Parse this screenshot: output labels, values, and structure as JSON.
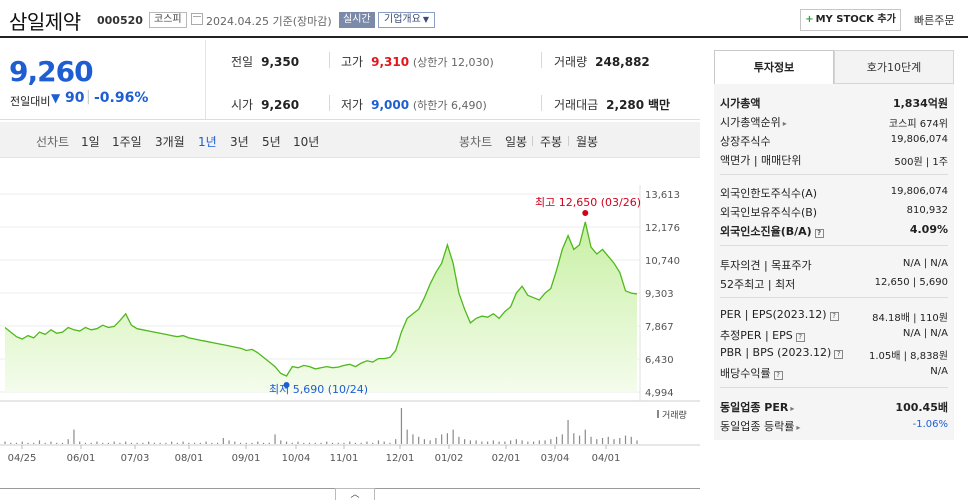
{
  "header": {
    "company_name": "삼일제약",
    "code": "000520",
    "market": "코스피",
    "date": "2024.04.25 기준(장마감)",
    "realtime": "실시간",
    "company_info": "기업개요",
    "mystock_label": "MY STOCK 추가",
    "quick_order": "빠른주문"
  },
  "quote": {
    "price": "9,260",
    "change_label": "전일대비",
    "change_value": "90",
    "change_pct": "-0.96%",
    "prev_label": "전일",
    "prev": "9,350",
    "high_label": "고가",
    "high": "9,310",
    "upper_limit": "(상한가 12,030)",
    "volume_label": "거래량",
    "volume": "248,882",
    "open_label": "시가",
    "open": "9,260",
    "low_label": "저가",
    "low": "9,000",
    "lower_limit": "(하한가 6,490)",
    "amount_label": "거래대금",
    "amount": "2,280",
    "amount_unit": "백만"
  },
  "chart_tabs": {
    "line_label": "선차트",
    "line_periods": [
      "1일",
      "1주일",
      "3개월",
      "1년",
      "3년",
      "5년",
      "10년"
    ],
    "active_period": "1년",
    "candle_label": "봉차트",
    "candle_periods": [
      "일봉",
      "주봉",
      "월봉"
    ]
  },
  "chart_data": {
    "type": "area",
    "y_ticks": [
      "13,613",
      "12,176",
      "10,740",
      "9,303",
      "7,867",
      "6,430",
      "4,994"
    ],
    "ylim": [
      4994,
      13613
    ],
    "x_ticks": [
      "04/25",
      "06/01",
      "07/03",
      "08/01",
      "09/01",
      "10/04",
      "11/01",
      "12/01",
      "01/02",
      "02/01",
      "03/04",
      "04/01"
    ],
    "high_annotation": "최고 12,650 (03/26)",
    "low_annotation": "최저 5,690 (10/24)",
    "volume_label": "거래량",
    "series_price": [
      7800,
      7600,
      7400,
      7300,
      7450,
      7350,
      7600,
      7500,
      7700,
      7550,
      7600,
      7800,
      7700,
      7650,
      7800,
      7700,
      7750,
      7900,
      7800,
      7850,
      8100,
      8400,
      7900,
      7750,
      7700,
      7650,
      7600,
      7550,
      7500,
      7450,
      7400,
      7450,
      7350,
      7300,
      7250,
      7200,
      7150,
      7100,
      7050,
      7000,
      6950,
      6900,
      6800,
      6850,
      6700,
      6500,
      6300,
      6100,
      5800,
      5690,
      6100,
      6050,
      6150,
      6100,
      6000,
      6050,
      6100,
      6050,
      6080,
      6150,
      6200,
      6100,
      6250,
      6350,
      6300,
      6450,
      6450,
      6500,
      6800,
      7600,
      8200,
      8400,
      8600,
      9100,
      9700,
      10200,
      10600,
      11400,
      10600,
      9300,
      8600,
      8000,
      8200,
      8300,
      8250,
      8400,
      8200,
      8500,
      8700,
      9300,
      9600,
      9200,
      9100,
      9000,
      9300,
      9500,
      10300,
      11200,
      11800,
      11200,
      11400,
      12400,
      11300,
      11000,
      11200,
      10900,
      10600,
      10200,
      9400,
      9300,
      9260
    ],
    "volume": [
      2,
      1,
      1,
      2,
      1,
      1,
      3,
      1,
      2,
      1,
      1,
      4,
      12,
      2,
      1,
      1,
      2,
      1,
      1,
      2,
      1,
      2,
      1,
      1,
      1,
      2,
      1,
      1,
      1,
      2,
      1,
      2,
      1,
      1,
      1,
      2,
      1,
      1,
      5,
      3,
      2,
      1,
      1,
      1,
      2,
      1,
      1,
      8,
      3,
      2,
      1,
      2,
      1,
      1,
      1,
      1,
      2,
      1,
      1,
      1,
      2,
      1,
      1,
      2,
      1,
      3,
      2,
      1,
      4,
      30,
      12,
      8,
      6,
      4,
      3,
      5,
      8,
      9,
      12,
      6,
      4,
      3,
      3,
      2,
      2,
      3,
      2,
      2,
      3,
      4,
      3,
      2,
      2,
      3,
      3,
      4,
      6,
      8,
      20,
      9,
      7,
      12,
      6,
      4,
      5,
      6,
      4,
      5,
      7,
      6,
      3
    ]
  },
  "right_panel": {
    "tab_invest": "투자정보",
    "tab_orderbook": "호가10단계",
    "market_cap_label": "시가총액",
    "market_cap": "1,834억원",
    "market_cap_rank_label": "시가총액순위",
    "market_cap_rank": "코스피 674위",
    "listed_shares_label": "상장주식수",
    "listed_shares": "19,806,074",
    "face_value_label": "액면가 | 매매단위",
    "face_value": "500원 | 1주",
    "foreign_limit_label": "외국인한도주식수(A)",
    "foreign_limit": "19,806,074",
    "foreign_hold_label": "외국인보유주식수(B)",
    "foreign_hold": "810,932",
    "foreign_ratio_label": "외국인소진율(B/A)",
    "foreign_ratio": "4.09%",
    "opinion_label": "투자의견 | 목표주가",
    "opinion": "N/A | N/A",
    "week52_label": "52주최고 | 최저",
    "week52": "12,650 | 5,690",
    "per_label": "PER | EPS(2023.12)",
    "per": "84.18배 | 110원",
    "est_per_label": "추정PER | EPS",
    "est_per": "N/A | N/A",
    "pbr_label": "PBR | BPS (2023.12)",
    "pbr": "1.05배 | 8,838원",
    "dividend_label": "배당수익률",
    "dividend": "N/A",
    "sector_per_label": "동일업종 PER",
    "sector_per": "100.45배",
    "sector_chg_label": "동일업종 등락률",
    "sector_chg": "-1.06%"
  },
  "collapse_icon": "chevron-up-icon"
}
